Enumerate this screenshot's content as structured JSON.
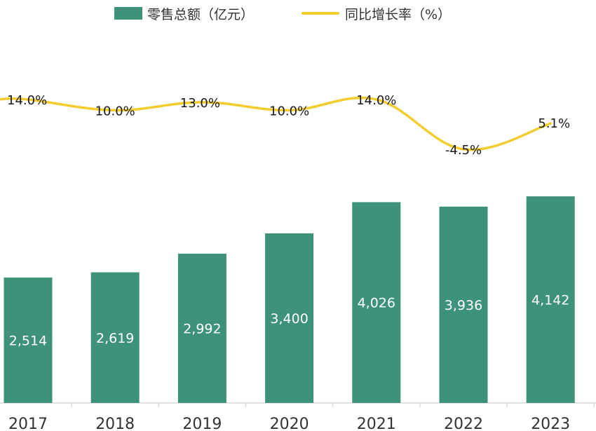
{
  "chart_data": {
    "type": "bar",
    "categories": [
      "2017",
      "2018",
      "2019",
      "2020",
      "2021",
      "2022",
      "2023"
    ],
    "series": [
      {
        "name": "零售总额（亿元）",
        "type": "bar",
        "values": [
          2514,
          2619,
          2992,
          3400,
          4026,
          3936,
          4142
        ],
        "labels": [
          "2,514",
          "2,619",
          "2,992",
          "3,400",
          "4,026",
          "3,936",
          "4,142"
        ],
        "color": "#3f927a"
      },
      {
        "name": "同比增长率（%）",
        "type": "line",
        "values": [
          14.0,
          10.0,
          13.0,
          10.0,
          14.0,
          -4.5,
          5.1
        ],
        "labels": [
          "14.0%",
          "10.0%",
          "13.0%",
          "10.0%",
          "14.0%",
          "-4.5%",
          "5.1%"
        ],
        "color": "#f2cd2f"
      }
    ],
    "title": "",
    "xlabel": "",
    "ylabel": "",
    "grid": false,
    "legend_position": "top"
  }
}
